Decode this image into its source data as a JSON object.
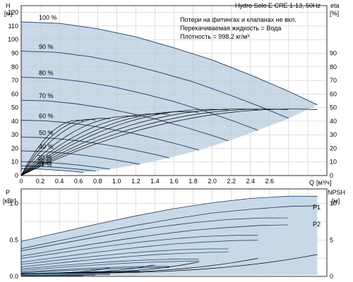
{
  "chart_data": [
    {
      "type": "line",
      "panel": "head-efficiency",
      "title": "Hydro Solo E CRE 1-13, 50Hz",
      "annotations": [
        "Потери на фитингах и клапанах не вкл.",
        "Перекачиваемая жидкость = Вода",
        "Плотность = 998.2 кг/м³"
      ],
      "ylabel": "H",
      "yunit": "[м]",
      "y2label": "eta",
      "y2unit": "[%]",
      "xlabel": "Q",
      "xunit": "[м³/ч]",
      "xlim": [
        0,
        3.2
      ],
      "ylim": [
        0,
        125
      ],
      "y2lim": [
        0,
        125
      ],
      "x_ticks": [
        0,
        0.2,
        0.4,
        0.6,
        0.8,
        1.0,
        1.2,
        1.4,
        1.6,
        1.8,
        2.0,
        2.2,
        2.4,
        2.6
      ],
      "y_ticks": [
        0,
        10,
        20,
        30,
        40,
        50,
        60,
        70,
        80,
        90,
        100,
        110,
        120
      ],
      "y2_ticks": [
        0,
        10,
        20,
        30,
        40,
        50,
        60,
        70,
        80,
        90
      ],
      "speed_labels": [
        "100 %",
        "90 %",
        "80 %",
        "70 %",
        "60 %",
        "50 %",
        "40 %",
        "30 %",
        "25 %",
        "21 %"
      ],
      "speed_fractions": [
        1.0,
        0.9,
        0.8,
        0.7,
        0.6,
        0.5,
        0.4,
        0.3,
        0.25,
        0.21
      ],
      "series": [
        {
          "name": "100 %",
          "x": [
            0,
            0.4,
            0.8,
            1.2,
            1.6,
            2.0,
            2.4,
            2.8,
            3.1
          ],
          "y": [
            113,
            112,
            108,
            102,
            94,
            85,
            74,
            62,
            52
          ]
        },
        {
          "name": "90 %",
          "x": [
            0,
            0.36,
            0.72,
            1.08,
            1.44,
            1.8,
            2.16,
            2.52,
            2.8
          ],
          "y": [
            91.5,
            90.7,
            87.5,
            82.6,
            76.1,
            68.9,
            59.9,
            50.2,
            42.1
          ]
        },
        {
          "name": "80 %",
          "x": [
            0,
            0.32,
            0.64,
            0.96,
            1.28,
            1.6,
            1.92,
            2.24,
            2.48
          ],
          "y": [
            72.3,
            71.7,
            69.1,
            65.3,
            60.2,
            54.4,
            47.4,
            39.7,
            33.3
          ]
        },
        {
          "name": "70 %",
          "x": [
            0,
            0.28,
            0.56,
            0.84,
            1.12,
            1.4,
            1.68,
            1.96,
            2.17
          ],
          "y": [
            55.4,
            54.9,
            52.9,
            50.0,
            46.1,
            41.7,
            36.3,
            30.4,
            25.5
          ]
        },
        {
          "name": "60 %",
          "x": [
            0,
            0.24,
            0.48,
            0.72,
            0.96,
            1.2,
            1.44,
            1.68,
            1.86
          ],
          "y": [
            40.7,
            40.3,
            38.9,
            36.7,
            33.8,
            30.6,
            26.6,
            22.3,
            18.7
          ]
        },
        {
          "name": "50 %",
          "x": [
            0,
            0.2,
            0.4,
            0.6,
            0.8,
            1.0,
            1.2,
            1.4,
            1.55
          ],
          "y": [
            28.3,
            28.0,
            27.0,
            25.5,
            23.5,
            21.3,
            18.5,
            15.5,
            13.0
          ]
        },
        {
          "name": "40 %",
          "x": [
            0,
            0.16,
            0.32,
            0.48,
            0.64,
            0.8,
            0.96,
            1.12,
            1.24
          ],
          "y": [
            18.1,
            17.9,
            17.3,
            16.3,
            15.0,
            13.6,
            11.8,
            9.9,
            8.3
          ]
        },
        {
          "name": "30 %",
          "x": [
            0,
            0.12,
            0.24,
            0.36,
            0.48,
            0.6,
            0.72,
            0.84,
            0.93
          ],
          "y": [
            10.2,
            10.1,
            9.7,
            9.2,
            8.5,
            7.7,
            6.7,
            5.6,
            4.7
          ]
        },
        {
          "name": "25 %",
          "x": [
            0,
            0.1,
            0.2,
            0.3,
            0.4,
            0.5,
            0.6,
            0.7,
            0.78
          ],
          "y": [
            7.1,
            7.0,
            6.8,
            6.4,
            5.9,
            5.3,
            4.6,
            3.9,
            3.3
          ]
        },
        {
          "name": "21 %",
          "x": [
            0,
            0.08,
            0.17,
            0.25,
            0.34,
            0.42,
            0.5,
            0.59,
            0.65
          ],
          "y": [
            5.0,
            5.0,
            4.8,
            4.5,
            4.1,
            3.7,
            3.3,
            2.7,
            2.3
          ]
        }
      ],
      "efficiency_peak": 49
    },
    {
      "type": "line",
      "panel": "power-npsh",
      "ylabel": "P",
      "yunit": "[кВт]",
      "y2label": "NPSH",
      "y2unit": "[м]",
      "xlim": [
        0,
        3.2
      ],
      "ylim": [
        0,
        1.2
      ],
      "y2lim": [
        0,
        12
      ],
      "y_ticks": [
        0,
        0.5,
        1.0
      ],
      "y2_ticks": [
        0,
        5,
        10
      ],
      "labels": [
        "P1",
        "P2"
      ],
      "series": [
        {
          "name": "P1",
          "x": [
            0,
            0.4,
            0.8,
            1.2,
            1.6,
            2.0,
            2.4,
            2.8,
            3.1
          ],
          "y": [
            0.48,
            0.6,
            0.72,
            0.83,
            0.93,
            1.01,
            1.07,
            1.1,
            1.1
          ]
        },
        {
          "name": "P2",
          "x": [
            0,
            0.4,
            0.8,
            1.2,
            1.6,
            2.0,
            2.4,
            2.8,
            3.1
          ],
          "y": [
            0.38,
            0.49,
            0.6,
            0.7,
            0.79,
            0.87,
            0.92,
            0.96,
            0.97
          ]
        }
      ]
    }
  ]
}
